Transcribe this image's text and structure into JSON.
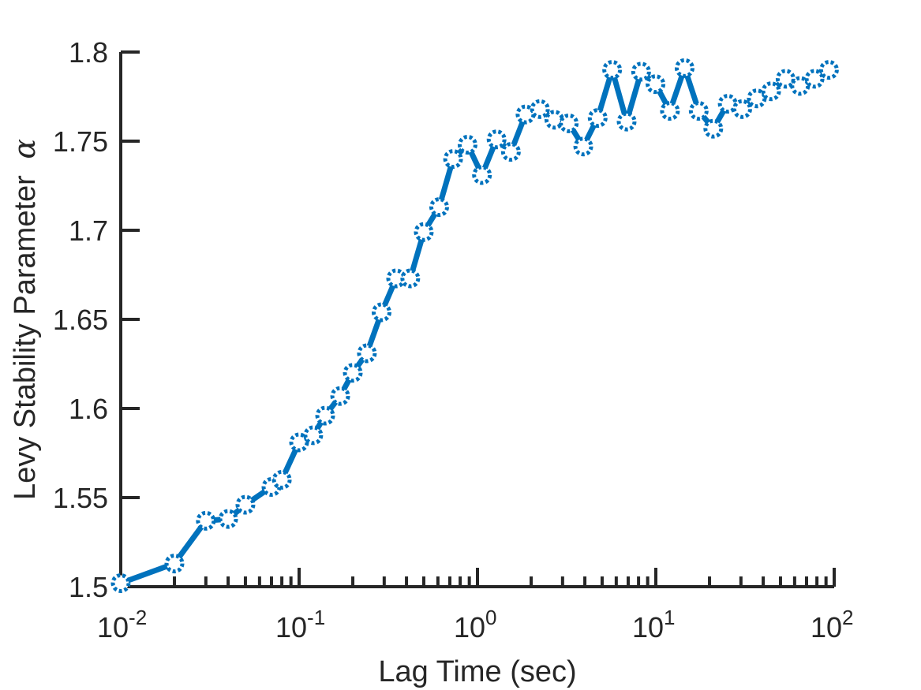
{
  "chart_data": {
    "type": "line",
    "xscale": "log",
    "xlabel": "Lag Time (sec)",
    "ylabel": "Levy Stability Parameter",
    "ylabel_symbol": "α",
    "xlim": [
      0.01,
      100
    ],
    "ylim": [
      1.5,
      1.8
    ],
    "x_ticks": [
      {
        "base": "10",
        "exp": "-2",
        "value": 0.01
      },
      {
        "base": "10",
        "exp": "-1",
        "value": 0.1
      },
      {
        "base": "10",
        "exp": "0",
        "value": 1
      },
      {
        "base": "10",
        "exp": "1",
        "value": 10
      },
      {
        "base": "10",
        "exp": "2",
        "value": 100
      }
    ],
    "y_ticks": [
      {
        "label": "1.5",
        "value": 1.5
      },
      {
        "label": "1.55",
        "value": 1.55
      },
      {
        "label": "1.6",
        "value": 1.6
      },
      {
        "label": "1.65",
        "value": 1.65
      },
      {
        "label": "1.7",
        "value": 1.7
      },
      {
        "label": "1.75",
        "value": 1.75
      },
      {
        "label": "1.8",
        "value": 1.8
      }
    ],
    "grid": false,
    "color": "#0072BD",
    "marker": "circle",
    "series": [
      {
        "x": [
          0.01,
          0.02,
          0.03,
          0.04,
          0.05,
          0.07,
          0.08,
          0.1,
          0.12,
          0.14,
          0.17,
          0.2,
          0.24,
          0.29,
          0.35,
          0.42,
          0.5,
          0.61,
          0.73,
          0.88,
          1.06,
          1.28,
          1.54,
          1.86,
          2.24,
          2.7,
          3.25,
          3.92,
          4.72,
          5.69,
          6.86,
          8.27,
          9.96,
          12.0,
          14.5,
          17.4,
          21.0,
          25.3,
          30.5,
          36.8,
          44.3,
          53.4,
          64.4,
          77.6,
          93.5
        ],
        "y": [
          1.502,
          1.513,
          1.537,
          1.538,
          1.546,
          1.556,
          1.56,
          1.581,
          1.585,
          1.596,
          1.607,
          1.62,
          1.631,
          1.654,
          1.673,
          1.673,
          1.699,
          1.713,
          1.74,
          1.748,
          1.731,
          1.751,
          1.744,
          1.765,
          1.768,
          1.762,
          1.76,
          1.747,
          1.763,
          1.79,
          1.761,
          1.789,
          1.782,
          1.767,
          1.791,
          1.767,
          1.757,
          1.771,
          1.768,
          1.774,
          1.778,
          1.785,
          1.781,
          1.785,
          1.79
        ]
      }
    ]
  }
}
